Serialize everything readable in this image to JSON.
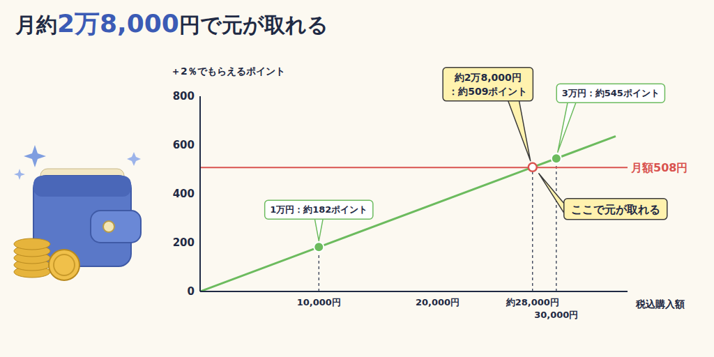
{
  "chart_data": {
    "type": "line",
    "title": "月約2万8,000円で元が取れる",
    "x_label": "税込購入額",
    "y_label": "＋2％でもらえるポイント",
    "x": [
      0,
      10000,
      28000,
      30000,
      35000
    ],
    "values": [
      0,
      182,
      509,
      545,
      636
    ],
    "color": "#6cbb5e",
    "xlim": [
      0,
      36000
    ],
    "xticks": [
      {
        "value": 10000,
        "label": "10,000円"
      },
      {
        "value": 20000,
        "label": "20,000円"
      },
      {
        "value": 28000,
        "label": "約28,000円"
      },
      {
        "value": 30000,
        "label": "30,000円"
      }
    ],
    "ylim": [
      0,
      800
    ],
    "yticks": [
      0,
      200,
      400,
      600,
      800
    ],
    "grid": false,
    "reference_line": {
      "value": 508,
      "label": "月額508円",
      "color": "#d9534f"
    },
    "annotations": [
      {
        "x": 10000,
        "y": 182,
        "label": "1万円：約182ポイント"
      },
      {
        "x": 28000,
        "y": 509,
        "label": [
          "約2万8,000円",
          "：約509ポイント"
        ]
      },
      {
        "x": 30000,
        "y": 545,
        "label": "3万円：約545ポイント"
      },
      {
        "x": 28000,
        "y": 509,
        "label": "ここで元が取れる"
      }
    ]
  }
}
